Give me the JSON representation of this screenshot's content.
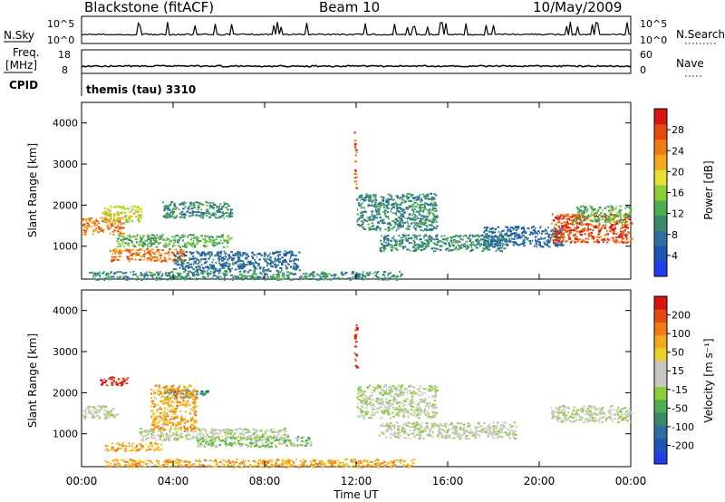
{
  "header": {
    "title": "Blackstone (fitACF)",
    "beam": "Beam 10",
    "date": "10/May/2009"
  },
  "nsky_panel": {
    "left_label": "N.Sky",
    "left_ticks": [
      "10^5",
      "10^0"
    ],
    "right_ticks": [
      "10^5",
      "10^0"
    ],
    "right_label": "N.Search"
  },
  "freq_panel": {
    "left_label_line1": "Freq.",
    "left_label_line2": "[MHz]",
    "left_ticks": [
      "18",
      "8"
    ],
    "right_ticks": [
      "60",
      "0"
    ],
    "right_label": "Nave"
  },
  "cpid_panel": {
    "label": "CPID",
    "value": "themis (tau) 3310"
  },
  "chart_data": [
    {
      "type": "heatmap",
      "quantity": "Power",
      "ylabel": "Slant Range [km]",
      "ylim": [
        200,
        4500
      ],
      "yticks": [
        1000,
        2000,
        3000,
        4000
      ],
      "xlim": [
        0,
        24
      ],
      "colorbar": {
        "label": "Power [dB]",
        "ticks": [
          "4",
          "8",
          "12",
          "16",
          "20",
          "24",
          "28"
        ],
        "colors": [
          "#1f3fe8",
          "#1e55b8",
          "#2e6fa0",
          "#3a8a6a",
          "#4caf50",
          "#8ccd3a",
          "#e8e030",
          "#f4a81d",
          "#f07a16",
          "#e24a12",
          "#d8140e"
        ]
      },
      "features": [
        {
          "t_start": 0.0,
          "t_end": 1.8,
          "r_start": 1300,
          "r_end": 1700,
          "level": 8
        },
        {
          "t_start": 0.8,
          "t_end": 2.6,
          "r_start": 1600,
          "r_end": 2000,
          "level": 6
        },
        {
          "t_start": 1.2,
          "t_end": 4.5,
          "r_start": 650,
          "r_end": 950,
          "level": 8
        },
        {
          "t_start": 1.5,
          "t_end": 6.5,
          "r_start": 1000,
          "r_end": 1300,
          "level": 4
        },
        {
          "t_start": 3.5,
          "t_end": 6.5,
          "r_start": 1700,
          "r_end": 2100,
          "level": 3
        },
        {
          "t_start": 4.0,
          "t_end": 9.5,
          "r_start": 400,
          "r_end": 900,
          "level": 2
        },
        {
          "t_start": 0.3,
          "t_end": 14.0,
          "r_start": 200,
          "r_end": 400,
          "level": 3
        },
        {
          "t_start": 11.9,
          "t_end": 12.0,
          "r_start": 2400,
          "r_end": 3900,
          "level": 9
        },
        {
          "t_start": 12.0,
          "t_end": 15.5,
          "r_start": 1400,
          "r_end": 2300,
          "level": 3
        },
        {
          "t_start": 13.0,
          "t_end": 18.5,
          "r_start": 900,
          "r_end": 1300,
          "level": 3
        },
        {
          "t_start": 17.5,
          "t_end": 21.0,
          "r_start": 1000,
          "r_end": 1500,
          "level": 2
        },
        {
          "t_start": 20.5,
          "t_end": 24.0,
          "r_start": 1100,
          "r_end": 1800,
          "level": 9
        },
        {
          "t_start": 21.5,
          "t_end": 24.0,
          "r_start": 1600,
          "r_end": 2000,
          "level": 4
        }
      ]
    },
    {
      "type": "heatmap",
      "quantity": "Velocity",
      "ylabel": "Slant Range [km]",
      "ylim": [
        200,
        4500
      ],
      "yticks": [
        1000,
        2000,
        3000,
        4000
      ],
      "xlim": [
        0,
        24
      ],
      "xticks": [
        "00:00",
        "04:00",
        "08:00",
        "12:00",
        "16:00",
        "20:00",
        "00:00"
      ],
      "xlabel": "Time UT",
      "colorbar": {
        "label": "Velocity [m s⁻¹]",
        "ticks": [
          "200",
          "100",
          "50",
          "15",
          "-15",
          "-50",
          "-100",
          "-200"
        ],
        "colors": [
          "#1f3fe8",
          "#1e55b8",
          "#2e6fa0",
          "#3a8a6a",
          "#4caf50",
          "#8ccd3a",
          "#c8c8c0",
          "#c8c8c0",
          "#e8d030",
          "#f4a81d",
          "#f07a16",
          "#e24a12",
          "#d8140e"
        ]
      },
      "features": [
        {
          "t_start": 0.0,
          "t_end": 1.5,
          "r_start": 1400,
          "r_end": 1700,
          "level": 6
        },
        {
          "t_start": 0.8,
          "t_end": 2.0,
          "r_start": 2200,
          "r_end": 2400,
          "level": 12
        },
        {
          "t_start": 1.0,
          "t_end": 3.5,
          "r_start": 600,
          "r_end": 800,
          "level": 9
        },
        {
          "t_start": 2.5,
          "t_end": 9.0,
          "r_start": 850,
          "r_end": 1150,
          "level": 6
        },
        {
          "t_start": 3.5,
          "t_end": 5.5,
          "r_start": 1900,
          "r_end": 2100,
          "level": 3
        },
        {
          "t_start": 3.0,
          "t_end": 5.0,
          "r_start": 1100,
          "r_end": 2200,
          "level": 9
        },
        {
          "t_start": 5.0,
          "t_end": 10.0,
          "r_start": 700,
          "r_end": 950,
          "level": 5
        },
        {
          "t_start": 1.0,
          "t_end": 14.5,
          "r_start": 200,
          "r_end": 400,
          "level": 9
        },
        {
          "t_start": 11.9,
          "t_end": 12.0,
          "r_start": 2600,
          "r_end": 3900,
          "level": 12
        },
        {
          "t_start": 12.0,
          "t_end": 15.5,
          "r_start": 1400,
          "r_end": 2200,
          "level": 6
        },
        {
          "t_start": 13.0,
          "t_end": 19.0,
          "r_start": 900,
          "r_end": 1300,
          "level": 6
        },
        {
          "t_start": 20.5,
          "t_end": 24.0,
          "r_start": 1300,
          "r_end": 1700,
          "level": 6
        }
      ]
    }
  ]
}
